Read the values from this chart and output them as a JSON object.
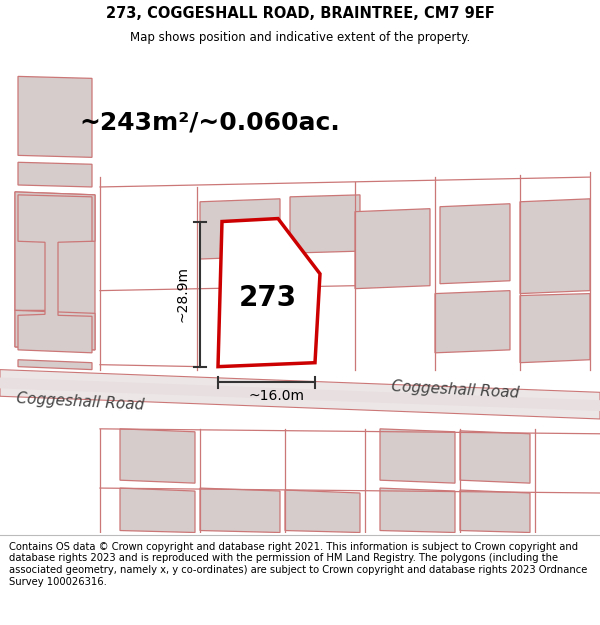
{
  "title": "273, COGGESHALL ROAD, BRAINTREE, CM7 9EF",
  "subtitle": "Map shows position and indicative extent of the property.",
  "footer": "Contains OS data © Crown copyright and database right 2021. This information is subject to Crown copyright and database rights 2023 and is reproduced with the permission of HM Land Registry. The polygons (including the associated geometry, namely x, y co-ordinates) are subject to Crown copyright and database rights 2023 Ordnance Survey 100026316.",
  "area_label": "~243m²/~0.060ac.",
  "plot_number": "273",
  "width_label": "~16.0m",
  "height_label": "~28.9m",
  "road_label_1": "Coggeshall Road",
  "road_label_2": "Coggeshall Road",
  "bg_color": "#ffffff",
  "map_bg": "#f5eded",
  "building_fill": "#d6cccc",
  "building_edge": "#cc7777",
  "road_edge": "#cc7777",
  "main_plot_color": "#cc0000",
  "dim_line_color": "#333333",
  "title_fontsize": 10.5,
  "subtitle_fontsize": 8.5,
  "footer_fontsize": 7.2,
  "area_fontsize": 18,
  "plot_num_fontsize": 20,
  "dim_fontsize": 10,
  "road_fontsize": 11
}
